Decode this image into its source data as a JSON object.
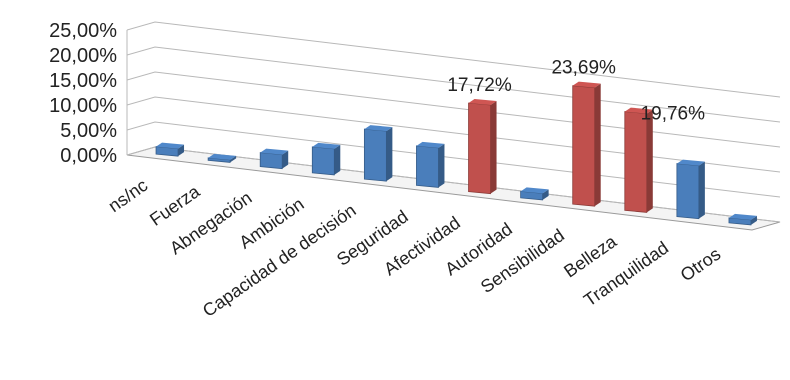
{
  "chart_data": {
    "type": "bar",
    "title": "",
    "xlabel": "",
    "ylabel": "",
    "ylim": [
      0,
      25
    ],
    "y_ticks": [
      "0,00%",
      "5,00%",
      "10,00%",
      "15,00%",
      "20,00%",
      "25,00%"
    ],
    "grid": true,
    "legend": "none",
    "categories": [
      "ns/nc",
      "Fuerza",
      "Abnegación",
      "Ambición",
      "Capacidad de decisión",
      "Seguridad",
      "Afectividad",
      "Autoridad",
      "Sensibilidad",
      "Belleza",
      "Tranquilidad",
      "Otros"
    ],
    "values": [
      1.5,
      0.2,
      2.8,
      5.2,
      10.0,
      7.9,
      17.72,
      1.3,
      23.69,
      19.76,
      10.6,
      1.0
    ],
    "data_labels": [
      "",
      "",
      "",
      "",
      "",
      "",
      "17,72%",
      "",
      "23,69%",
      "19,76%",
      "",
      ""
    ],
    "colors": {
      "default": "#4a7ebb",
      "highlight": "#c0504d"
    },
    "highlighted": [
      false,
      false,
      false,
      false,
      false,
      false,
      true,
      false,
      true,
      true,
      false,
      false
    ]
  }
}
